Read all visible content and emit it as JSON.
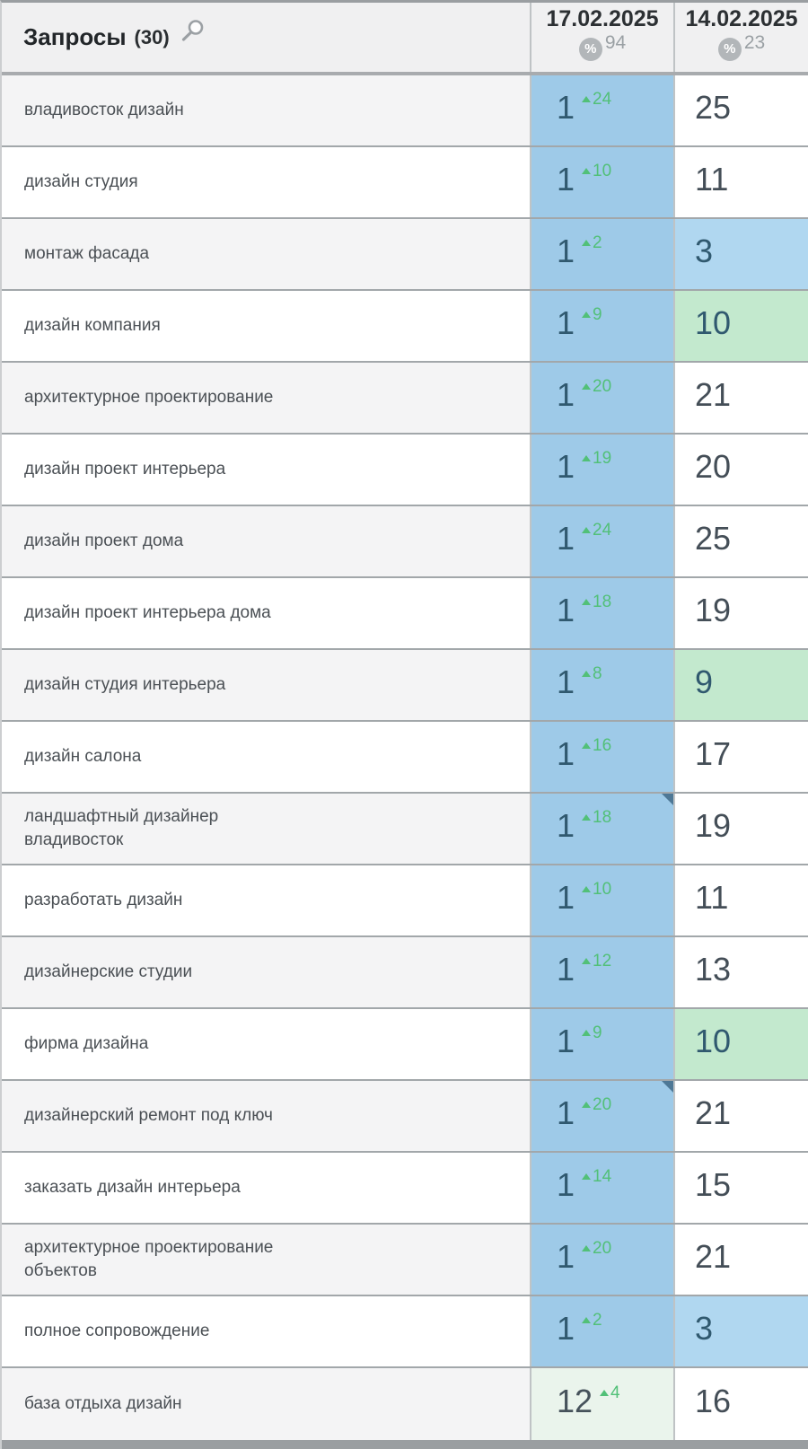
{
  "colors": {
    "current_top3_blue": "#9ecae8",
    "current_palegreen": "#eaf4ec",
    "previous_top3_lightblue": "#b0d7f0",
    "previous_top10_green": "#c3e9ce",
    "delta_green": "#52c078",
    "note_marker_blue": "#4e7896",
    "header_bg": "#f0f0f1"
  },
  "header": {
    "queries_label": "Запросы",
    "queries_count": "(30)",
    "percent_symbol": "%",
    "columns": [
      {
        "date": "17.02.2025",
        "percent_value": "94"
      },
      {
        "date": "14.02.2025",
        "percent_value": "23"
      }
    ]
  },
  "rows": [
    {
      "query": "владивосток дизайн",
      "current": "1",
      "delta": "24",
      "previous": "25",
      "current_bg": "blue",
      "previous_bg": "white",
      "note_marker": false
    },
    {
      "query": "дизайн студия",
      "current": "1",
      "delta": "10",
      "previous": "11",
      "current_bg": "blue",
      "previous_bg": "white",
      "note_marker": false
    },
    {
      "query": "монтаж фасада",
      "current": "1",
      "delta": "2",
      "previous": "3",
      "current_bg": "blue",
      "previous_bg": "lightblue",
      "note_marker": false
    },
    {
      "query": "дизайн компания",
      "current": "1",
      "delta": "9",
      "previous": "10",
      "current_bg": "blue",
      "previous_bg": "green",
      "note_marker": false
    },
    {
      "query": "архитектурное проектирование",
      "current": "1",
      "delta": "20",
      "previous": "21",
      "current_bg": "blue",
      "previous_bg": "white",
      "note_marker": false
    },
    {
      "query": "дизайн проект интерьера",
      "current": "1",
      "delta": "19",
      "previous": "20",
      "current_bg": "blue",
      "previous_bg": "white",
      "note_marker": false
    },
    {
      "query": "дизайн проект дома",
      "current": "1",
      "delta": "24",
      "previous": "25",
      "current_bg": "blue",
      "previous_bg": "white",
      "note_marker": false
    },
    {
      "query": "дизайн проект интерьера дома",
      "current": "1",
      "delta": "18",
      "previous": "19",
      "current_bg": "blue",
      "previous_bg": "white",
      "note_marker": false
    },
    {
      "query": "дизайн студия интерьера",
      "current": "1",
      "delta": "8",
      "previous": "9",
      "current_bg": "blue",
      "previous_bg": "green",
      "note_marker": false
    },
    {
      "query": "дизайн салона",
      "current": "1",
      "delta": "16",
      "previous": "17",
      "current_bg": "blue",
      "previous_bg": "white",
      "note_marker": false
    },
    {
      "query": "ландшафтный дизайнер\nвладивосток",
      "current": "1",
      "delta": "18",
      "previous": "19",
      "current_bg": "blue",
      "previous_bg": "white",
      "note_marker": true
    },
    {
      "query": "разработать дизайн",
      "current": "1",
      "delta": "10",
      "previous": "11",
      "current_bg": "blue",
      "previous_bg": "white",
      "note_marker": false
    },
    {
      "query": "дизайнерские студии",
      "current": "1",
      "delta": "12",
      "previous": "13",
      "current_bg": "blue",
      "previous_bg": "white",
      "note_marker": false
    },
    {
      "query": "фирма дизайна",
      "current": "1",
      "delta": "9",
      "previous": "10",
      "current_bg": "blue",
      "previous_bg": "green",
      "note_marker": false
    },
    {
      "query": "дизайнерский ремонт под ключ",
      "current": "1",
      "delta": "20",
      "previous": "21",
      "current_bg": "blue",
      "previous_bg": "white",
      "note_marker": true
    },
    {
      "query": "заказать дизайн интерьера",
      "current": "1",
      "delta": "14",
      "previous": "15",
      "current_bg": "blue",
      "previous_bg": "white",
      "note_marker": false
    },
    {
      "query": "архитектурное проектирование\nобъектов",
      "current": "1",
      "delta": "20",
      "previous": "21",
      "current_bg": "blue",
      "previous_bg": "white",
      "note_marker": false
    },
    {
      "query": "полное сопровождение",
      "current": "1",
      "delta": "2",
      "previous": "3",
      "current_bg": "blue",
      "previous_bg": "lightblue",
      "note_marker": false
    },
    {
      "query": "база отдыха дизайн",
      "current": "12",
      "delta": "4",
      "previous": "16",
      "current_bg": "palegreen",
      "previous_bg": "white",
      "note_marker": false
    }
  ]
}
